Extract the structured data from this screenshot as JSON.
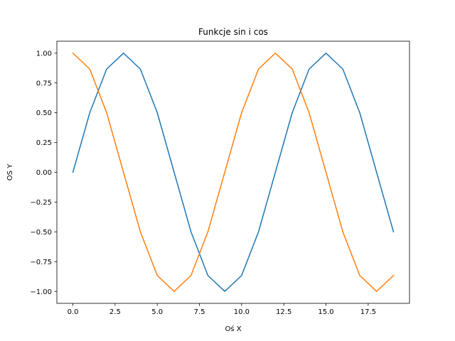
{
  "chart_data": {
    "type": "line",
    "title": "Funkcje sin i cos",
    "xlabel": "Oś X",
    "ylabel": "OS Y",
    "xlim": [
      -0.95,
      19.95
    ],
    "ylim": [
      -1.1,
      1.1
    ],
    "x_ticks": [
      0,
      2.5,
      5,
      7.5,
      10,
      12.5,
      15,
      17.5
    ],
    "x_tick_labels": [
      "0.0",
      "2.5",
      "5.0",
      "7.5",
      "10.0",
      "12.5",
      "15.0",
      "17.5"
    ],
    "y_ticks": [
      -1,
      -0.75,
      -0.5,
      -0.25,
      0,
      0.25,
      0.5,
      0.75,
      1
    ],
    "y_tick_labels": [
      "−1.00",
      "−0.75",
      "−0.50",
      "−0.25",
      "0.00",
      "0.25",
      "0.50",
      "0.75",
      "1.00"
    ],
    "grid": false,
    "legend": false,
    "x": [
      0,
      1,
      2,
      3,
      4,
      5,
      6,
      7,
      8,
      9,
      10,
      11,
      12,
      13,
      14,
      15,
      16,
      17,
      18,
      19
    ],
    "series": [
      {
        "color": "#1f77b4",
        "values": [
          0.0,
          0.5,
          0.866,
          1.0,
          0.866,
          0.5,
          0.0,
          -0.5,
          -0.866,
          -1.0,
          -0.866,
          -0.5,
          0.0,
          0.5,
          0.866,
          1.0,
          0.866,
          0.5,
          0.0,
          -0.5
        ]
      },
      {
        "color": "#ff7f0e",
        "values": [
          1.0,
          0.866,
          0.5,
          0.0,
          -0.5,
          -0.866,
          -1.0,
          -0.866,
          -0.5,
          0.0,
          0.5,
          0.866,
          1.0,
          0.866,
          0.5,
          0.0,
          -0.5,
          -0.866,
          -1.0,
          -0.866
        ]
      }
    ]
  }
}
